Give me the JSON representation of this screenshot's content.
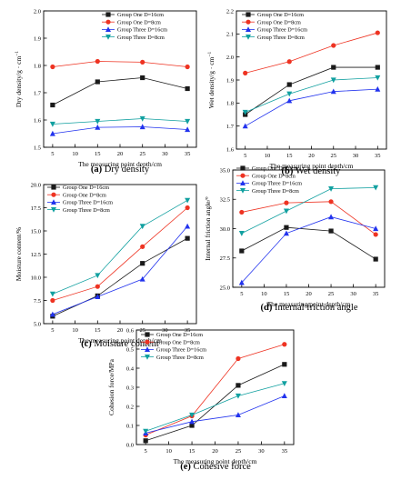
{
  "chart_data": [
    {
      "type": "line",
      "caption_letter": "(a)",
      "caption_text": "Dry density",
      "xlabel": "The measuring point depth/cm",
      "ylabel": "Dry density/g · cm",
      "ylabel_sup": "−1",
      "x": [
        5,
        15,
        25,
        35
      ],
      "xticks": [
        5,
        10,
        15,
        20,
        25,
        30,
        35
      ],
      "xlim": [
        3,
        37
      ],
      "ylim": [
        1.5,
        2.0
      ],
      "yticks": [
        1.5,
        1.6,
        1.7,
        1.8,
        1.9,
        2.0
      ],
      "ytick_decimals": 1,
      "legend_position": "top-right",
      "series": [
        {
          "name": "Group One D=16cm",
          "values": [
            1.655,
            1.74,
            1.755,
            1.715
          ]
        },
        {
          "name": "Group One D=8cm",
          "values": [
            1.795,
            1.815,
            1.812,
            1.795
          ]
        },
        {
          "name": "Group Three D=16cm",
          "values": [
            1.55,
            1.573,
            1.575,
            1.565
          ]
        },
        {
          "name": "Group Three D=8cm",
          "values": [
            1.585,
            1.595,
            1.605,
            1.595
          ]
        }
      ]
    },
    {
      "type": "line",
      "caption_letter": "(b)",
      "caption_text": "Wet density",
      "xlabel": "The measuring point depth/cm",
      "ylabel": "Wet density/g · cm",
      "ylabel_sup": "−1",
      "x": [
        5,
        15,
        25,
        35
      ],
      "xticks": [
        5,
        10,
        15,
        20,
        25,
        30,
        35
      ],
      "xlim": [
        3,
        37
      ],
      "ylim": [
        1.6,
        2.2
      ],
      "yticks": [
        1.6,
        1.7,
        1.8,
        1.9,
        2.0,
        2.1,
        2.2
      ],
      "ytick_decimals": 1,
      "legend_position": "top-left",
      "series": [
        {
          "name": "Group One D=16cm",
          "values": [
            1.75,
            1.88,
            1.955,
            1.955
          ]
        },
        {
          "name": "Group One D=8cm",
          "values": [
            1.93,
            1.98,
            2.05,
            2.105
          ]
        },
        {
          "name": "Group Three D=16cm",
          "values": [
            1.7,
            1.81,
            1.85,
            1.86
          ]
        },
        {
          "name": "Group Three D=8cm",
          "values": [
            1.76,
            1.84,
            1.9,
            1.91
          ]
        }
      ]
    },
    {
      "type": "line",
      "caption_letter": "(c)",
      "caption_text": "Moisture content",
      "xlabel": "The measuring point depth/cm",
      "ylabel": "Moisture content/%",
      "ylabel_sup": "",
      "x": [
        5,
        15,
        25,
        35
      ],
      "xticks": [
        5,
        10,
        15,
        20,
        25,
        30,
        35
      ],
      "xlim": [
        3,
        37
      ],
      "ylim": [
        5.0,
        20.0
      ],
      "yticks": [
        5.0,
        7.5,
        10.0,
        12.5,
        15.0,
        17.5,
        20.0
      ],
      "ytick_decimals": 1,
      "legend_position": "top-left",
      "series": [
        {
          "name": "Group One D=16cm",
          "values": [
            5.8,
            8.0,
            11.5,
            14.2
          ]
        },
        {
          "name": "Group One D=8cm",
          "values": [
            7.5,
            9.0,
            13.3,
            17.5
          ]
        },
        {
          "name": "Group Three D=16cm",
          "values": [
            6.0,
            7.9,
            9.8,
            15.5
          ]
        },
        {
          "name": "Group Three D=8cm",
          "values": [
            8.2,
            10.2,
            15.5,
            18.3
          ]
        }
      ]
    },
    {
      "type": "line",
      "caption_letter": "(d)",
      "caption_text": "Internal friction angle",
      "xlabel": "The measuring point depth/cm",
      "ylabel": "Internal friction angle/°",
      "ylabel_sup": "",
      "x": [
        5,
        15,
        25,
        35
      ],
      "xticks": [
        5,
        10,
        15,
        20,
        25,
        30,
        35
      ],
      "xlim": [
        3,
        37
      ],
      "ylim": [
        25.0,
        35.0
      ],
      "yticks": [
        25.0,
        27.5,
        30.0,
        32.5,
        35.0
      ],
      "ytick_decimals": 1,
      "legend_position": "top-left",
      "series": [
        {
          "name": "Group One D=16cm",
          "values": [
            28.1,
            30.1,
            29.8,
            27.4
          ]
        },
        {
          "name": "Group One D=8cm",
          "values": [
            31.4,
            32.2,
            32.3,
            29.5
          ]
        },
        {
          "name": "Group Three D=16cm",
          "values": [
            25.4,
            29.6,
            31.0,
            30.0
          ]
        },
        {
          "name": "Group Three D=8cm",
          "values": [
            29.6,
            31.5,
            33.4,
            33.5
          ]
        }
      ]
    },
    {
      "type": "line",
      "caption_letter": "(e)",
      "caption_text": "Cohesive force",
      "xlabel": "The measuring point depth/cm",
      "ylabel": "Cohesion force/MPa",
      "ylabel_sup": "",
      "x": [
        5,
        15,
        25,
        35
      ],
      "xticks": [
        5,
        10,
        15,
        20,
        25,
        30,
        35
      ],
      "xlim": [
        3,
        37
      ],
      "ylim": [
        0.0,
        0.6
      ],
      "yticks": [
        0.0,
        0.1,
        0.2,
        0.3,
        0.4,
        0.5,
        0.6
      ],
      "ytick_decimals": 1,
      "legend_position": "top-left",
      "series": [
        {
          "name": "Group One D=16cm",
          "values": [
            0.02,
            0.1,
            0.31,
            0.42
          ]
        },
        {
          "name": "Group One D=8cm",
          "values": [
            0.05,
            0.15,
            0.45,
            0.525
          ]
        },
        {
          "name": "Group Three D=16cm",
          "values": [
            0.06,
            0.12,
            0.155,
            0.255
          ]
        },
        {
          "name": "Group Three D=8cm",
          "values": [
            0.07,
            0.155,
            0.255,
            0.32
          ]
        }
      ]
    }
  ],
  "series_styles": [
    {
      "color": "#1a1a1a",
      "marker": "square"
    },
    {
      "color": "#ee3322",
      "marker": "circle"
    },
    {
      "color": "#2233ee",
      "marker": "triangle-up"
    },
    {
      "color": "#11a0a0",
      "marker": "triangle-down"
    }
  ]
}
